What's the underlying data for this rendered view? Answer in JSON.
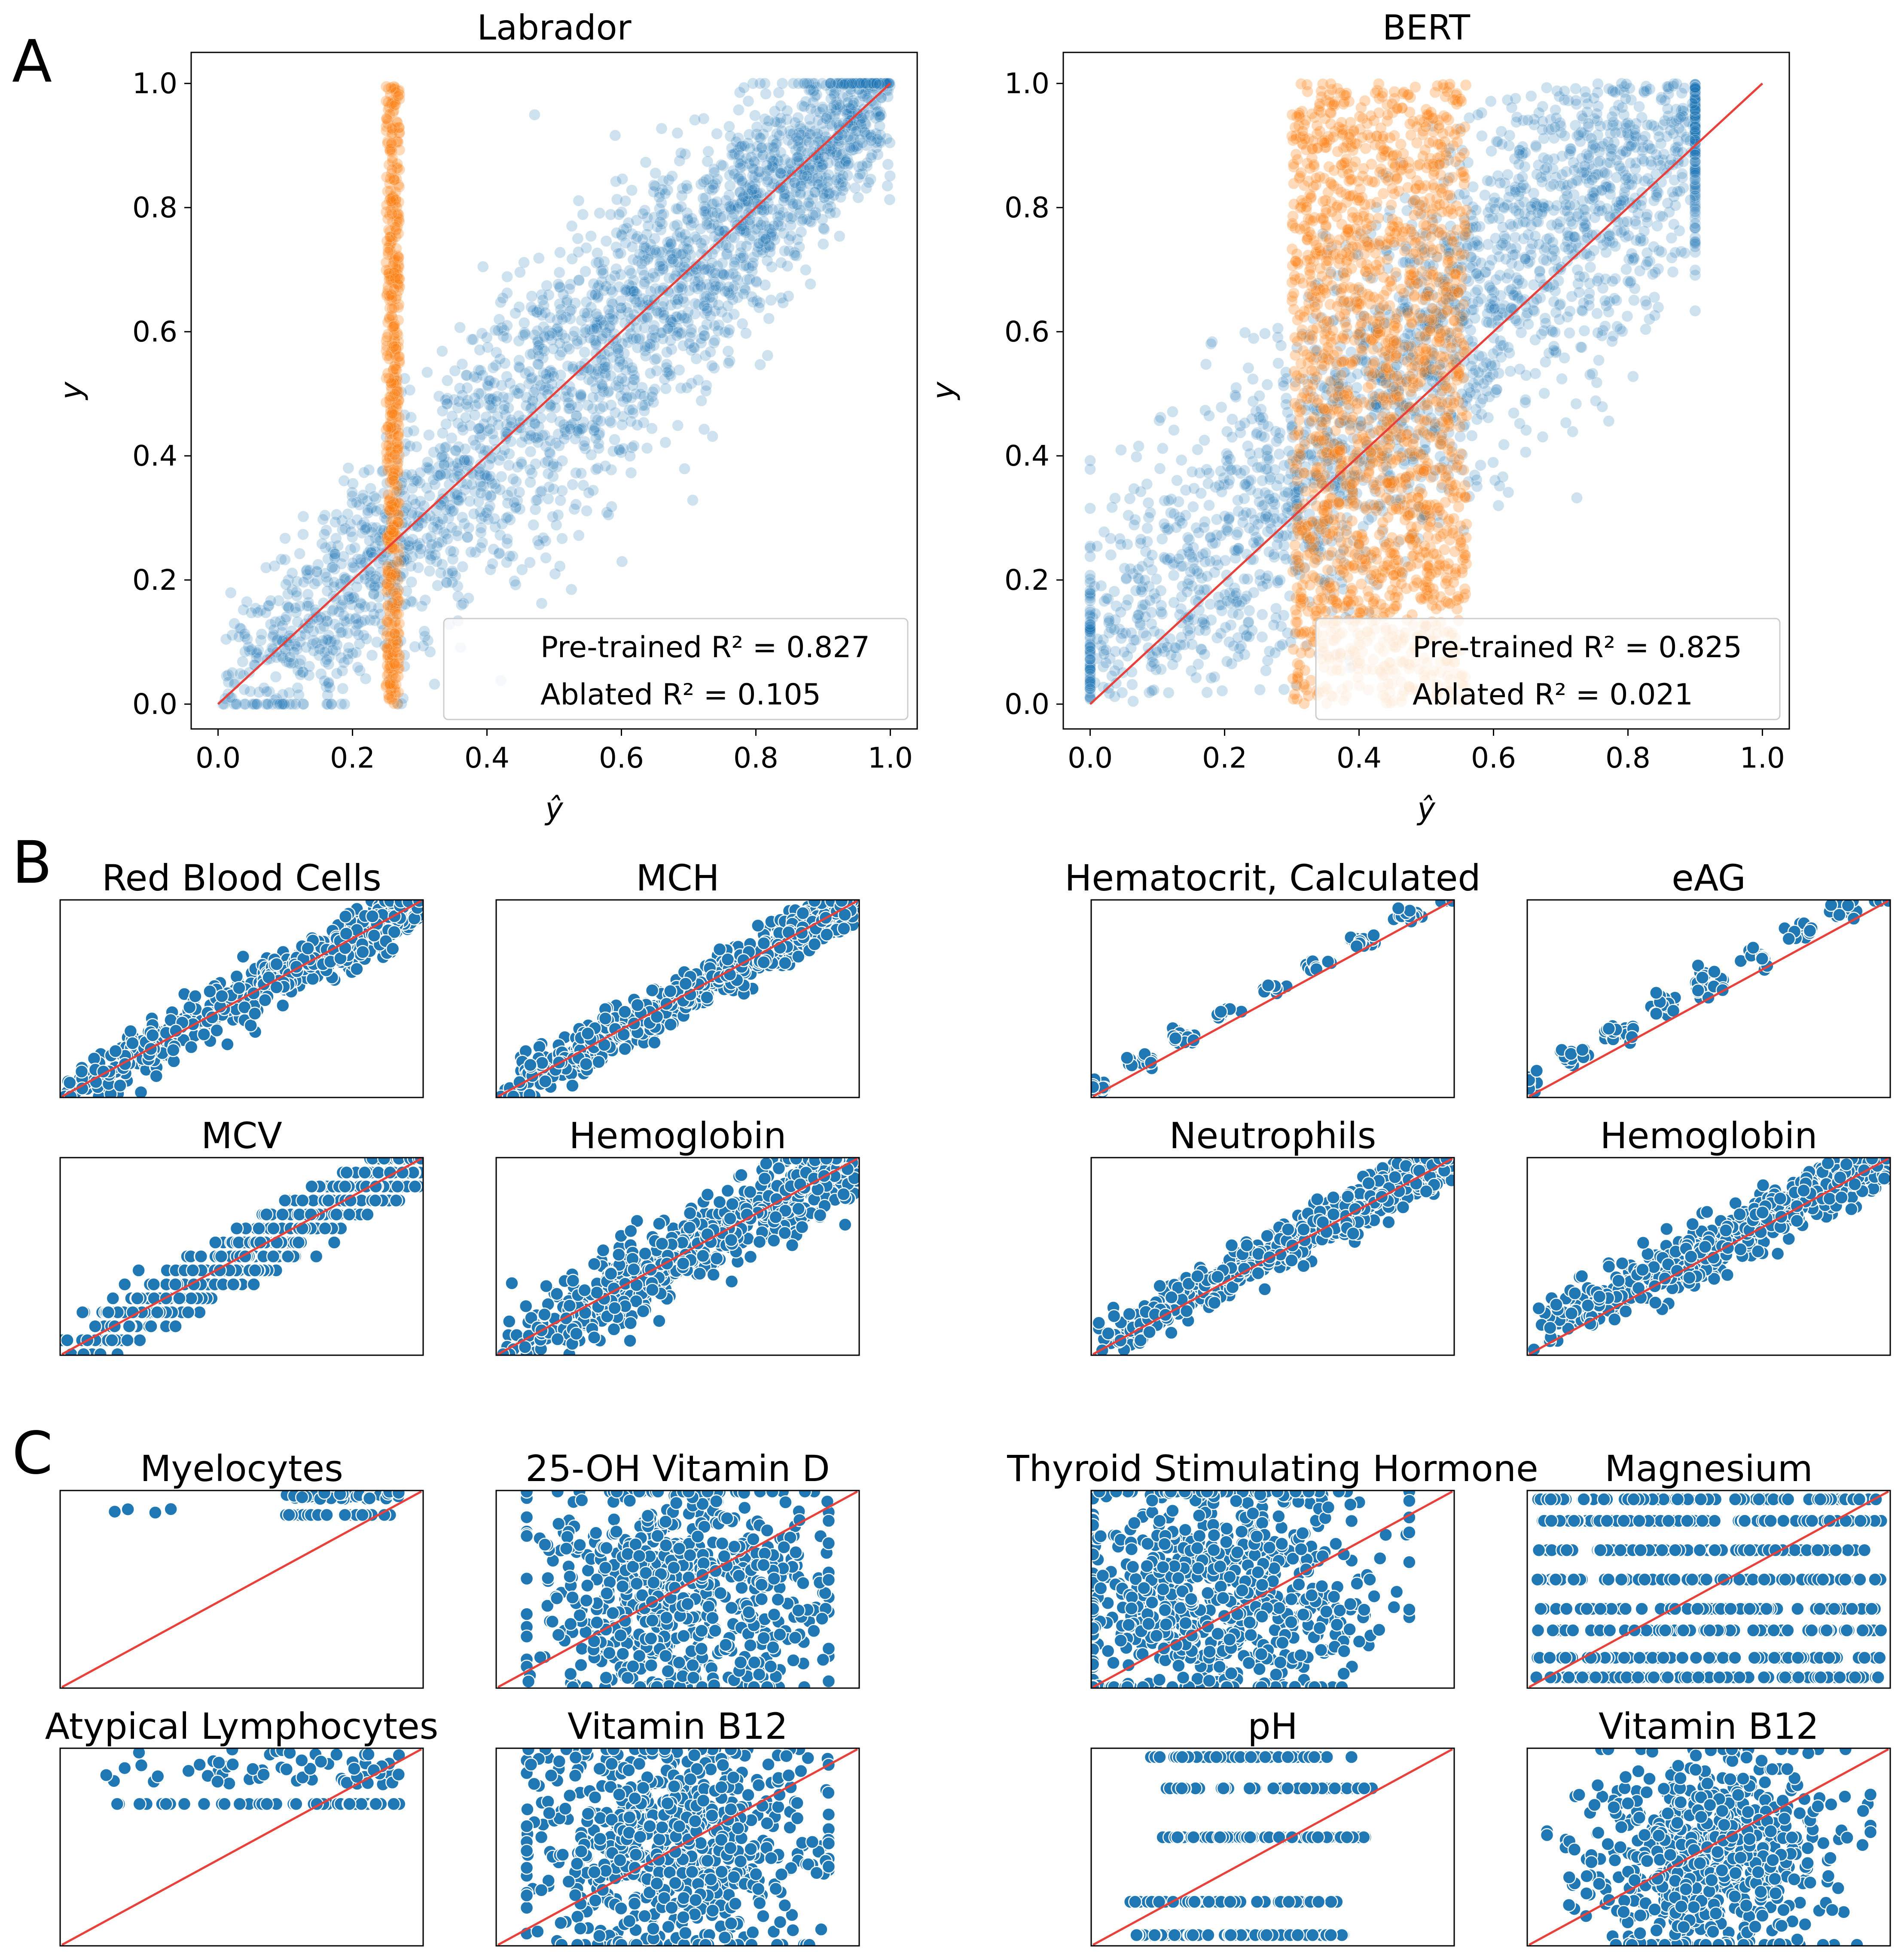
{
  "panels": {
    "a": "A",
    "b": "B",
    "c": "C"
  },
  "colors": {
    "pretrained": "#1f77b4",
    "ablated": "#ff7f0e",
    "identity": "#e8403a",
    "axis": "#000000"
  },
  "chart_data": [
    {
      "id": "A-labrador",
      "type": "scatter",
      "title": "Labrador",
      "xlabel": "ŷ",
      "ylabel": "y",
      "xlim": [
        -0.04,
        1.04
      ],
      "ylim": [
        -0.04,
        1.05
      ],
      "xticks": [
        "0.0",
        "0.2",
        "0.4",
        "0.6",
        "0.8",
        "1.0"
      ],
      "yticks": [
        "0.0",
        "0.2",
        "0.4",
        "0.6",
        "0.8",
        "1.0"
      ],
      "identity_line": [
        [
          0,
          0
        ],
        [
          1,
          1
        ]
      ],
      "series": [
        {
          "name": "Pre-trained",
          "legend": "Pre-trained R² = 0.827",
          "r2": 0.827,
          "pattern": "diagonal-cloud",
          "x_range": [
            0,
            1
          ],
          "y_range": [
            0,
            1
          ],
          "spread": 0.09,
          "n_shown": 2600
        },
        {
          "name": "Ablated",
          "legend": "Ablated R² = 0.105",
          "r2": 0.105,
          "pattern": "vertical-band",
          "x_range": [
            0.25,
            0.27
          ],
          "y_range": [
            0,
            1
          ],
          "n_shown": 520
        }
      ],
      "legend_position": "lower right"
    },
    {
      "id": "A-bert",
      "type": "scatter",
      "title": "BERT",
      "xlabel": "ŷ",
      "ylabel": "y",
      "xlim": [
        -0.04,
        1.04
      ],
      "ylim": [
        -0.04,
        1.05
      ],
      "xticks": [
        "0.0",
        "0.2",
        "0.4",
        "0.6",
        "0.8",
        "1.0"
      ],
      "yticks": [
        "0.0",
        "0.2",
        "0.4",
        "0.6",
        "0.8",
        "1.0"
      ],
      "identity_line": [
        [
          0,
          0
        ],
        [
          1,
          1
        ]
      ],
      "series": [
        {
          "name": "Pre-trained",
          "legend": "Pre-trained R² = 0.825",
          "r2": 0.825,
          "pattern": "diagonal-cloud",
          "x_range": [
            0,
            0.9
          ],
          "y_range": [
            0,
            1
          ],
          "spread": 0.13,
          "n_shown": 2400
        },
        {
          "name": "Ablated",
          "legend": "Ablated R² = 0.021",
          "r2": 0.021,
          "pattern": "vertical-band",
          "x_range": [
            0.3,
            0.56
          ],
          "y_range": [
            0,
            1
          ],
          "n_shown": 1800
        }
      ],
      "legend_position": "lower right"
    },
    {
      "id": "B-1",
      "type": "scatter",
      "title": "Red Blood Cells",
      "pattern": "tight",
      "spread": 0.07,
      "n_shown": 650
    },
    {
      "id": "B-2",
      "type": "scatter",
      "title": "MCH",
      "pattern": "tight",
      "spread": 0.06,
      "n_shown": 650
    },
    {
      "id": "B-3",
      "type": "scatter",
      "title": "Hematocrit, Calculated",
      "pattern": "sparse-steps",
      "spread": 0.02,
      "offset": 0.05,
      "n_shown": 120
    },
    {
      "id": "B-4",
      "type": "scatter",
      "title": "eAG",
      "pattern": "sparse-steps",
      "spread": 0.03,
      "offset": 0.08,
      "n_shown": 140
    },
    {
      "id": "B-5",
      "type": "scatter",
      "title": "MCV",
      "pattern": "stepped",
      "spread": 0.07,
      "n_shown": 600
    },
    {
      "id": "B-6",
      "type": "scatter",
      "title": "Hemoglobin",
      "pattern": "tight",
      "spread": 0.1,
      "n_shown": 650
    },
    {
      "id": "B-7",
      "type": "scatter",
      "title": "Neutrophils",
      "pattern": "tight",
      "spread": 0.06,
      "offset": 0.05,
      "n_shown": 600
    },
    {
      "id": "B-8",
      "type": "scatter",
      "title": "Hemoglobin",
      "pattern": "tight",
      "spread": 0.07,
      "offset": 0.1,
      "n_shown": 600
    },
    {
      "id": "C-1",
      "type": "scatter",
      "title": "Myelocytes",
      "pattern": "top-row",
      "n_shown": 90
    },
    {
      "id": "C-2",
      "type": "scatter",
      "title": "25-OH Vitamin D",
      "pattern": "blob",
      "n_shown": 700
    },
    {
      "id": "C-3",
      "type": "scatter",
      "title": "Thyroid Stimulating Hormone",
      "pattern": "blob-left",
      "n_shown": 750
    },
    {
      "id": "C-4",
      "type": "scatter",
      "title": "Magnesium",
      "pattern": "rows",
      "rows": [
        0.05,
        0.15,
        0.29,
        0.4,
        0.55,
        0.7,
        0.85,
        0.96
      ],
      "n_shown": 650
    },
    {
      "id": "C-5",
      "type": "scatter",
      "title": "Atypical Lymphocytes",
      "pattern": "top-row-2",
      "n_shown": 110
    },
    {
      "id": "C-6",
      "type": "scatter",
      "title": "Vitamin B12",
      "pattern": "blob",
      "n_shown": 750
    },
    {
      "id": "C-7",
      "type": "scatter",
      "title": "pH",
      "pattern": "rows-short",
      "rows": [
        0.05,
        0.22,
        0.55,
        0.8,
        0.96
      ],
      "n_shown": 300
    },
    {
      "id": "C-8",
      "type": "scatter",
      "title": "Vitamin B12",
      "pattern": "blob-round",
      "n_shown": 700
    }
  ]
}
